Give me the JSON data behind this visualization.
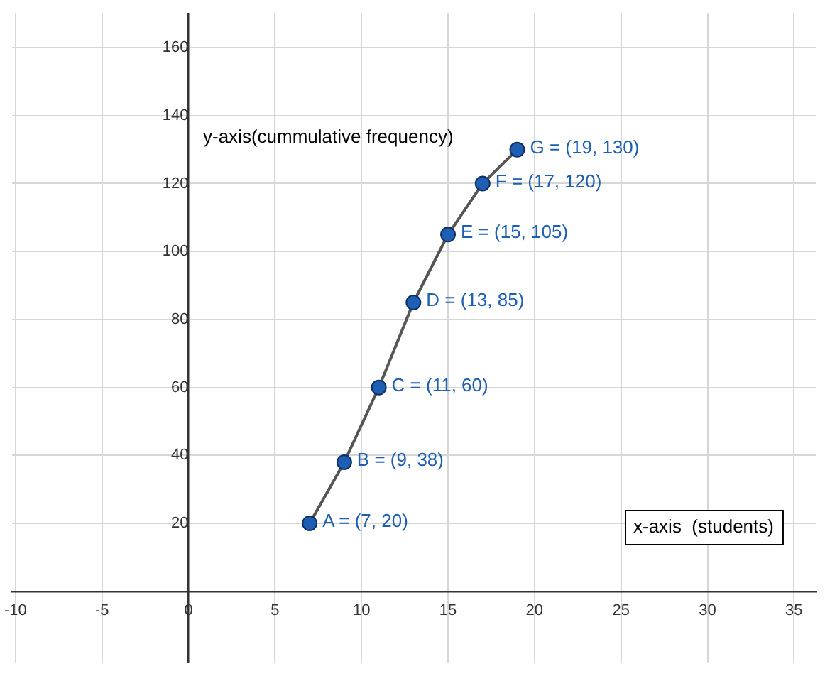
{
  "chart_data": {
    "type": "line",
    "xlabel": "x-axis  (students)",
    "ylabel": "y-axis(cummulative frequency)",
    "x": [
      7,
      9,
      11,
      13,
      15,
      17,
      19
    ],
    "series": [
      {
        "color": "#555555",
        "values": [
          20,
          38,
          60,
          85,
          105,
          120,
          130
        ]
      }
    ],
    "marker": "circle",
    "line_style": "solid",
    "grid": true,
    "legend": false,
    "xlim": [
      -10.2,
      36.3
    ],
    "xticks": [
      -10,
      -5,
      0,
      5,
      10,
      15,
      20,
      25,
      30,
      35
    ],
    "ylim": [
      -20.9,
      170
    ],
    "yticks": [
      {
        "value": 0,
        "label": null
      },
      20,
      40,
      60,
      80,
      100,
      120,
      140,
      160
    ],
    "annotations": [
      {
        "text": "A = (7, 20)",
        "x": 7,
        "y": 20
      },
      {
        "text": "B = (9, 38)",
        "x": 9,
        "y": 38
      },
      {
        "text": "C = (11, 60)",
        "x": 11,
        "y": 60
      },
      {
        "text": "D = (13, 85)",
        "x": 13,
        "y": 85
      },
      {
        "text": "E = (15, 105)",
        "x": 15,
        "y": 105
      },
      {
        "text": "F = (17, 120)",
        "x": 17,
        "y": 120
      },
      {
        "text": "G = (19, 130)",
        "x": 19,
        "y": 130
      }
    ]
  }
}
